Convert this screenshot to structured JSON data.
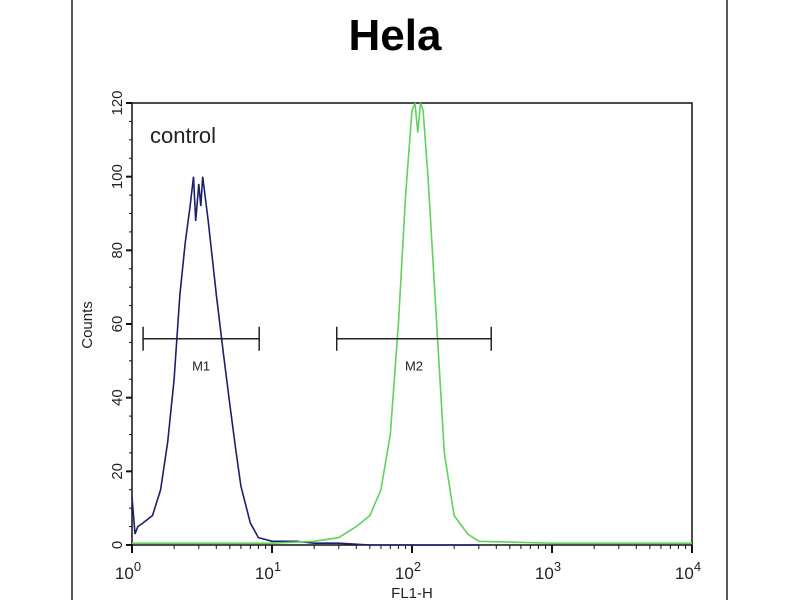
{
  "chart_data": {
    "type": "line",
    "title": "Hela",
    "xlabel": "FL1-H",
    "ylabel": "Counts",
    "xscale": "log",
    "xlim": [
      1,
      10000
    ],
    "ylim": [
      0,
      120
    ],
    "xticks": [
      {
        "base": "10",
        "exp": "0"
      },
      {
        "base": "10",
        "exp": "1"
      },
      {
        "base": "10",
        "exp": "2"
      },
      {
        "base": "10",
        "exp": "3"
      },
      {
        "base": "10",
        "exp": "4"
      }
    ],
    "yticks": [
      0,
      20,
      40,
      60,
      80,
      100,
      120
    ],
    "annotation": "control",
    "series": [
      {
        "name": "control",
        "color": "#1c1f6b",
        "x": [
          1.0,
          1.05,
          1.1,
          1.2,
          1.4,
          1.6,
          1.8,
          2.0,
          2.2,
          2.4,
          2.6,
          2.75,
          2.85,
          3.0,
          3.1,
          3.2,
          3.5,
          4.0,
          4.5,
          5.0,
          5.5,
          6.0,
          7.0,
          8.0,
          10,
          15,
          20,
          30,
          50,
          100,
          300
        ],
        "y": [
          13,
          3,
          5,
          6,
          8,
          15,
          28,
          45,
          68,
          82,
          92,
          100,
          88,
          98,
          92,
          100,
          88,
          68,
          52,
          38,
          26,
          16,
          6,
          2,
          1,
          1,
          0.5,
          0.5,
          0,
          0,
          0
        ]
      },
      {
        "name": "Hela",
        "color": "#5fd35a",
        "x": [
          1,
          10,
          20,
          30,
          40,
          50,
          60,
          70,
          80,
          90,
          100,
          105,
          110,
          115,
          120,
          130,
          150,
          170,
          200,
          250,
          300,
          1000,
          10000
        ],
        "y": [
          0.5,
          0.5,
          1,
          2,
          5,
          8,
          15,
          30,
          60,
          95,
          118,
          120,
          112,
          120,
          118,
          100,
          60,
          25,
          8,
          3,
          1,
          0.5,
          0.5
        ]
      }
    ],
    "markers": [
      {
        "label": "M1",
        "x": [
          1.2,
          8.1
        ],
        "y": 56
      },
      {
        "label": "M2",
        "x": [
          29,
          368
        ],
        "y": 56
      }
    ]
  }
}
